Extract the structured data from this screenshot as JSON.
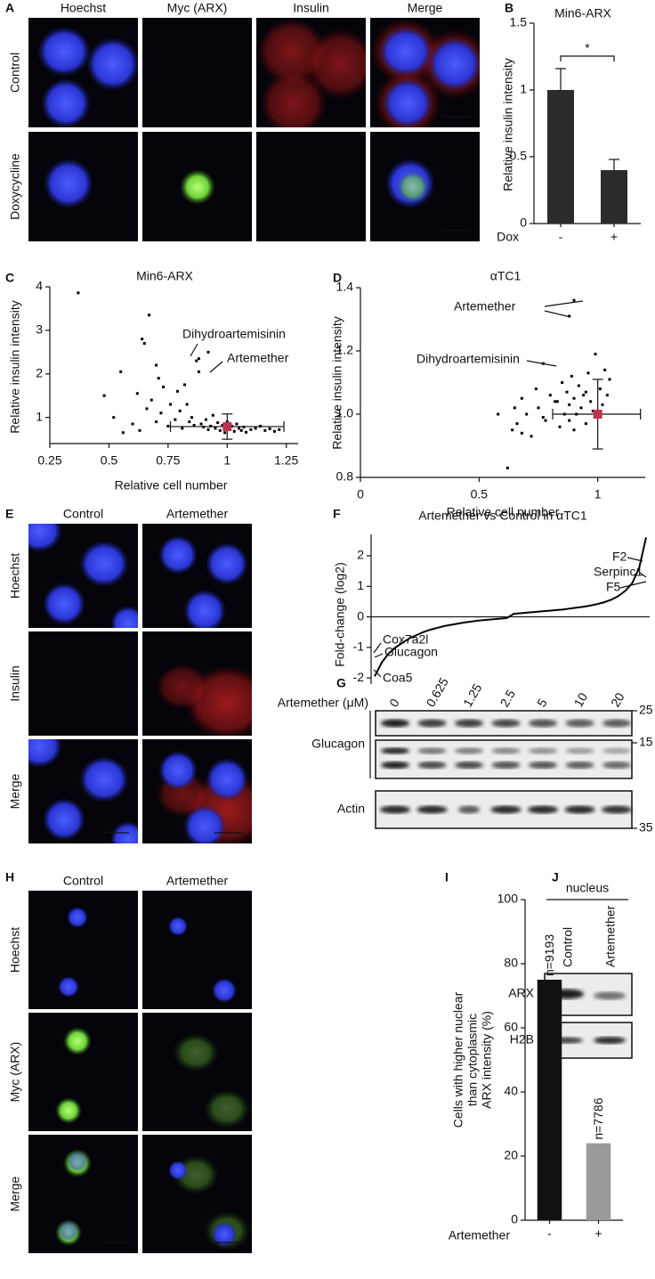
{
  "panels": {
    "A": {
      "letter": "A",
      "columns": [
        "Hoechst",
        "Myc (ARX)",
        "Insulin",
        "Merge"
      ],
      "rows": [
        "Control",
        "Doxycycline"
      ]
    },
    "E": {
      "letter": "E",
      "columns": [
        "Control",
        "Artemether"
      ],
      "rows": [
        "Hoechst",
        "Insulin",
        "Merge"
      ]
    },
    "G": {
      "letter": "G",
      "treatment": "Artemether (μM)",
      "concentrations": [
        0,
        0.625,
        1.25,
        2.5,
        5,
        10,
        20
      ],
      "blots": [
        "Glucagon",
        "Actin"
      ],
      "markers": [
        25,
        15,
        35
      ]
    },
    "H": {
      "letter": "H",
      "columns": [
        "Control",
        "Artemether"
      ],
      "rows": [
        "Hoechst",
        "Myc (ARX)",
        "Merge"
      ]
    },
    "J": {
      "letter": "J",
      "fraction": "nucleus",
      "lanes": [
        "Control",
        "Artemether"
      ],
      "blots": [
        "ARX",
        "H2B"
      ]
    }
  },
  "chart_data": [
    {
      "panel": "B",
      "type": "bar",
      "title": "Min6-ARX",
      "y_label": "Relative insulin intensity",
      "x_label": "Dox",
      "categories": [
        "-",
        "+"
      ],
      "values": [
        1.0,
        0.4
      ],
      "errors": [
        0.16,
        0.08
      ],
      "color": "#2b2b2b",
      "ylim": [
        0,
        1.5
      ],
      "yticks": [
        0,
        0.5,
        1,
        1.5
      ],
      "significance": "*"
    },
    {
      "panel": "C",
      "type": "scatter",
      "title": "Min6-ARX",
      "x_label": "Relative cell number",
      "y_label": "Relative insulin intensity",
      "x": [
        0.37,
        0.48,
        0.52,
        0.55,
        0.56,
        0.6,
        0.62,
        0.63,
        0.64,
        0.65,
        0.66,
        0.67,
        0.68,
        0.7,
        0.7,
        0.72,
        0.73,
        0.75,
        0.76,
        0.78,
        0.8,
        0.81,
        0.82,
        0.84,
        0.85,
        0.86,
        0.87,
        0.88,
        0.89,
        0.9,
        0.91,
        0.92,
        0.93,
        0.94,
        0.95,
        0.96,
        0.97,
        0.98,
        0.99,
        1.0,
        1.01,
        1.02,
        1.03,
        1.04,
        1.05,
        1.06,
        1.07,
        1.08,
        1.1,
        1.12,
        1.14,
        1.16,
        1.18,
        1.2,
        1.22,
        0.88,
        0.92,
        0.79,
        0.71,
        0.83
      ],
      "y": [
        3.86,
        1.5,
        1.0,
        2.05,
        0.65,
        0.85,
        1.55,
        0.7,
        2.8,
        2.7,
        1.2,
        3.35,
        1.4,
        2.2,
        0.9,
        1.1,
        1.7,
        0.8,
        1.3,
        0.95,
        1.15,
        0.75,
        1.75,
        0.9,
        1.0,
        0.82,
        2.3,
        2.05,
        0.85,
        0.78,
        0.95,
        0.72,
        0.8,
        1.05,
        0.75,
        0.88,
        0.7,
        0.82,
        0.65,
        0.9,
        0.72,
        0.8,
        0.68,
        0.85,
        0.75,
        0.7,
        0.78,
        0.66,
        0.72,
        0.75,
        0.8,
        0.7,
        0.74,
        0.68,
        0.72,
        2.35,
        2.5,
        1.6,
        1.9,
        1.3
      ],
      "color": "#000000",
      "xlim": [
        0.25,
        1.3
      ],
      "ylim": [
        0.4,
        4
      ],
      "xticks": [
        0.25,
        0.5,
        0.75,
        1,
        1.25
      ],
      "yticks": [
        1,
        2,
        3,
        4
      ],
      "mean_x": 1.0,
      "mean_y": 0.79,
      "x_range": [
        0.76,
        1.24
      ],
      "y_range": [
        0.5,
        1.08
      ],
      "mean_color": "#c0334d",
      "annotations": [
        {
          "text": "Dihydroartemisinin"
        },
        {
          "text": "Artemether"
        }
      ]
    },
    {
      "panel": "D",
      "type": "scatter",
      "title": "αTC1",
      "x_label": "Relative cell number",
      "y_label": "Relative insulin intensity",
      "x": [
        0.58,
        0.62,
        0.64,
        0.65,
        0.66,
        0.68,
        0.7,
        0.72,
        0.74,
        0.75,
        0.77,
        0.78,
        0.8,
        0.82,
        0.84,
        0.85,
        0.86,
        0.87,
        0.88,
        0.88,
        0.89,
        0.9,
        0.9,
        0.91,
        0.92,
        0.93,
        0.94,
        0.95,
        0.96,
        0.97,
        0.98,
        0.99,
        1.0,
        1.01,
        1.02,
        1.03,
        1.04,
        1.05,
        0.88,
        0.9,
        0.77,
        0.68,
        0.83,
        0.95
      ],
      "y": [
        1.0,
        0.83,
        0.95,
        1.02,
        0.97,
        1.05,
        1.0,
        0.93,
        1.08,
        1.02,
        1.16,
        0.98,
        1.06,
        1.04,
        0.96,
        1.1,
        1.0,
        1.07,
        1.03,
        0.98,
        1.12,
        1.05,
        0.95,
        1.0,
        1.09,
        1.02,
        1.06,
        0.97,
        1.13,
        1.04,
        1.01,
        1.19,
        1.0,
        1.08,
        1.03,
        1.14,
        1.06,
        1.11,
        1.31,
        1.36,
        0.99,
        0.94,
        1.04,
        1.07
      ],
      "color": "#000000",
      "xlim": [
        0,
        1.2
      ],
      "ylim": [
        0.8,
        1.4
      ],
      "xticks": [
        0,
        0.5,
        1
      ],
      "yticks": [
        0.8,
        {
          "value": 1,
          "label": "1.0"
        },
        1.2,
        1.4
      ],
      "mean_x": 1.0,
      "mean_y": 1.0,
      "x_range": [
        0.81,
        1.18
      ],
      "y_range": [
        0.89,
        1.11
      ],
      "mean_color": "#c0334d",
      "annotations": [
        {
          "text": "Artemether"
        },
        {
          "text": "Dihydroartemisinin"
        }
      ]
    },
    {
      "panel": "F",
      "type": "line",
      "title": "Artemether vs Control in αTC1",
      "y_label": "Fold-change (log2)",
      "values": [
        -1.95,
        -1.5,
        -1.2,
        -1.0,
        -0.85,
        -0.7,
        -0.6,
        -0.5,
        -0.42,
        -0.36,
        -0.3,
        -0.26,
        -0.22,
        -0.18,
        -0.15,
        -0.12,
        -0.1,
        -0.08,
        -0.06,
        -0.04,
        0.1,
        0.12,
        0.14,
        0.16,
        0.18,
        0.2,
        0.22,
        0.24,
        0.27,
        0.3,
        0.33,
        0.37,
        0.42,
        0.48,
        0.56,
        0.68,
        0.85,
        1.1,
        1.6,
        2.6
      ],
      "color": "#000000",
      "ylim": [
        -2.2,
        2.7
      ],
      "yticks": [
        -2,
        -1,
        0,
        1,
        2
      ],
      "annotations": [
        {
          "text": "F2"
        },
        {
          "text": "Serpinc1"
        },
        {
          "text": "F5"
        },
        {
          "text": "Cox7a2l"
        },
        {
          "text": "Glucagon",
          "color": "#c0334d"
        },
        {
          "text": "Coa5"
        }
      ]
    },
    {
      "panel": "I",
      "type": "bar",
      "y_label": [
        "Cells with higher nuclear",
        "than cytoplasmic",
        "ARX intensity (%)"
      ],
      "x_label": "Artemether",
      "categories": [
        "-",
        "+"
      ],
      "values": [
        75,
        24
      ],
      "colors": [
        "#111111",
        "#9a9a9a"
      ],
      "bar_annotations": [
        "n=9193",
        "n=7786"
      ],
      "ylim": [
        0,
        100
      ],
      "yticks": [
        0,
        20,
        40,
        60,
        80,
        100
      ]
    }
  ]
}
